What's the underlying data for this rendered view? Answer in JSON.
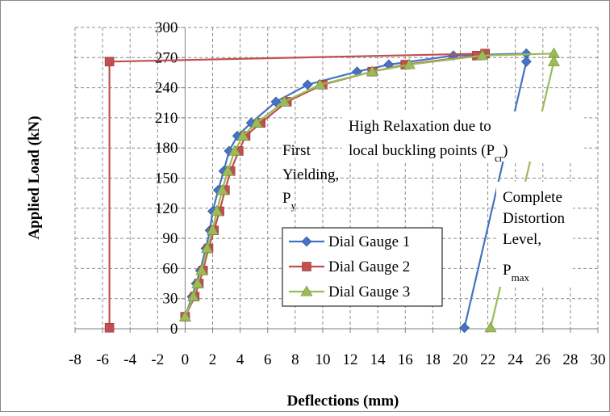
{
  "chart_data": {
    "type": "scatter",
    "xlabel": "Deflections (mm)",
    "ylabel": "Applied Load  (kN)",
    "xlim": [
      -8,
      30
    ],
    "ylim": [
      0,
      300
    ],
    "x_ticks": [
      "-8",
      "-6",
      "-4",
      "-2",
      "0",
      "2",
      "4",
      "6",
      "8",
      "10",
      "12",
      "14",
      "16",
      "18",
      "20",
      "22",
      "24",
      "26",
      "28",
      "30"
    ],
    "y_ticks": [
      "0",
      "30",
      "60",
      "90",
      "120",
      "150",
      "180",
      "210",
      "240",
      "270",
      "300"
    ],
    "grid": true,
    "legend_position": "lower-center",
    "series": [
      {
        "name": "Dial Gauge 1",
        "color": "#4472C4",
        "marker": "diamond",
        "points": [
          [
            0,
            12
          ],
          [
            0.5,
            32
          ],
          [
            0.8,
            45
          ],
          [
            1.1,
            58
          ],
          [
            1.5,
            80
          ],
          [
            1.8,
            98
          ],
          [
            2.0,
            117
          ],
          [
            2.4,
            138
          ],
          [
            2.8,
            157
          ],
          [
            3.2,
            177
          ],
          [
            3.8,
            192
          ],
          [
            4.8,
            205
          ],
          [
            6.6,
            226
          ],
          [
            8.9,
            243
          ],
          [
            12.5,
            256
          ],
          [
            14.8,
            263
          ],
          [
            19.5,
            272
          ],
          [
            24.8,
            274
          ],
          [
            24.8,
            266
          ],
          [
            20.3,
            1
          ]
        ]
      },
      {
        "name": "Dial Gauge 2",
        "color": "#C0504D",
        "marker": "square",
        "points": [
          [
            0,
            12
          ],
          [
            0.7,
            32
          ],
          [
            1.0,
            45
          ],
          [
            1.3,
            58
          ],
          [
            1.7,
            80
          ],
          [
            2.1,
            98
          ],
          [
            2.5,
            117
          ],
          [
            2.9,
            138
          ],
          [
            3.3,
            157
          ],
          [
            3.9,
            177
          ],
          [
            4.4,
            192
          ],
          [
            5.5,
            205
          ],
          [
            7.4,
            226
          ],
          [
            10.0,
            243
          ],
          [
            13.6,
            256
          ],
          [
            16.0,
            263
          ],
          [
            21.2,
            272
          ],
          [
            21.8,
            274
          ],
          [
            -5.5,
            266
          ],
          [
            -5.5,
            1
          ]
        ]
      },
      {
        "name": "Dial Gauge 3",
        "color": "#9BBB59",
        "marker": "triangle",
        "points": [
          [
            0,
            12
          ],
          [
            0.6,
            32
          ],
          [
            0.9,
            45
          ],
          [
            1.2,
            58
          ],
          [
            1.6,
            80
          ],
          [
            2.0,
            98
          ],
          [
            2.3,
            117
          ],
          [
            2.7,
            138
          ],
          [
            3.1,
            157
          ],
          [
            3.6,
            177
          ],
          [
            4.2,
            192
          ],
          [
            5.2,
            205
          ],
          [
            7.2,
            226
          ],
          [
            9.8,
            243
          ],
          [
            13.6,
            256
          ],
          [
            16.3,
            263
          ],
          [
            21.6,
            272
          ],
          [
            26.8,
            274
          ],
          [
            26.8,
            266
          ],
          [
            22.2,
            1
          ]
        ]
      }
    ],
    "annotations": {
      "first_yielding": [
        "First",
        "Yielding,",
        "P",
        "y"
      ],
      "high_relaxation": [
        "High Relaxation due to",
        "local buckling points (P",
        "cr",
        ")"
      ],
      "complete_distortion": [
        "Complete",
        "Distortion",
        "Level,",
        "P",
        "max"
      ]
    }
  }
}
